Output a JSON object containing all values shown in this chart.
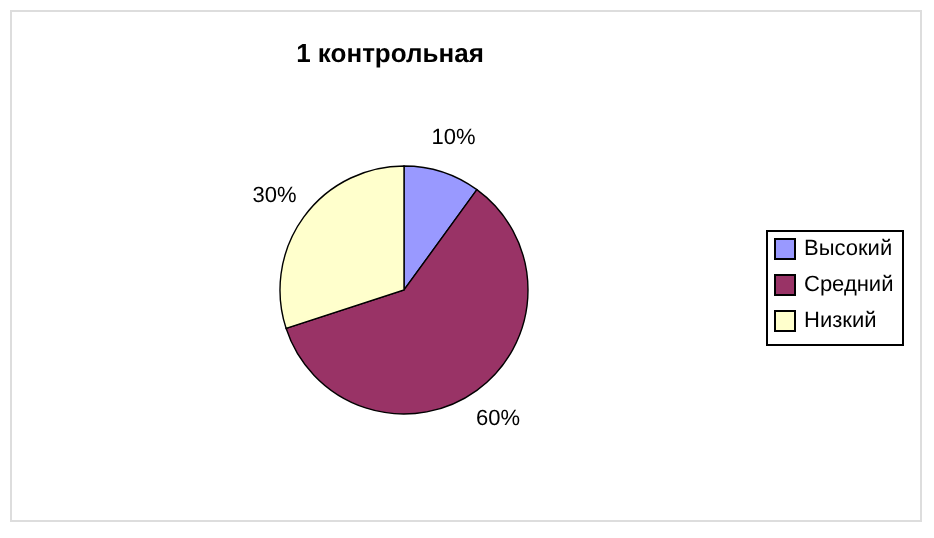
{
  "chart_data": {
    "type": "pie",
    "title": "1 контрольная",
    "categories": [
      "Высокий",
      "Средний",
      "Низкий"
    ],
    "values": [
      10,
      60,
      30
    ],
    "colors": [
      "#9999ff",
      "#993366",
      "#ffffcc"
    ],
    "value_labels": [
      "10%",
      "60%",
      "30%"
    ],
    "legend": "right"
  }
}
